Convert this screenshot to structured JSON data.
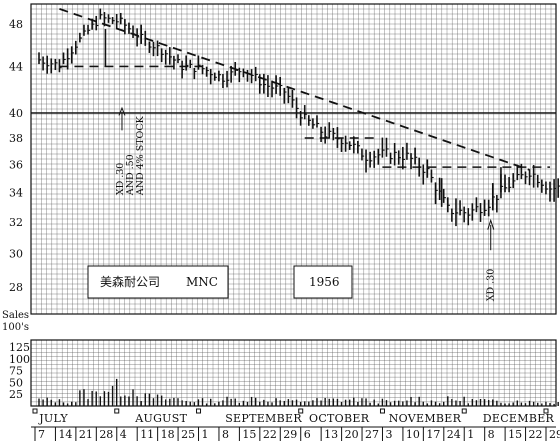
{
  "chart_data": [
    {
      "type": "bar",
      "subtype": "ohlc-daily-price-bars",
      "grid": true,
      "yscale": "log",
      "ylim": [
        26.5,
        50
      ],
      "y_ticks": [
        28,
        30,
        32,
        34,
        36,
        38,
        40,
        44,
        48
      ],
      "x_dates": [
        "7",
        "14",
        "21",
        "28",
        "4",
        "11",
        "18",
        "25",
        "1",
        "8",
        "15",
        "22",
        "29",
        "6",
        "13",
        "20",
        "27",
        "3",
        "10",
        "17",
        "24",
        "1",
        "8",
        "15",
        "22",
        "29"
      ],
      "months": [
        "JULY",
        "AUGUST",
        "SEPTEMBER",
        "OCTOBER",
        "NOVEMBER",
        "DECEMBER"
      ],
      "labels": {
        "company_cn": "美森耐公司",
        "company_en": "MNC",
        "year": "1956"
      },
      "annotations": [
        {
          "text": "XD .30",
          "week_index": 4.5
        },
        {
          "text": "AND .50",
          "week_index": 4.5
        },
        {
          "text": "AND 4% STOCK",
          "week_index": 4.5
        },
        {
          "text": "XD .30",
          "week_index": 22.1
        }
      ],
      "trendline": {
        "style": "dashed",
        "points": [
          [
            1.0,
            49.5
          ],
          [
            24.0,
            35.6
          ]
        ]
      },
      "horizontal_lines": [
        {
          "style": "dashed",
          "y": 44.0,
          "from": 1.0,
          "to": 8.0
        },
        {
          "style": "dashed",
          "y": 38.0,
          "from": 13.0,
          "to": 16.5
        },
        {
          "style": "dashed",
          "y": 35.8,
          "from": 16.8,
          "to": 25.0
        }
      ],
      "weekly_closes": [
        44.6,
        44.1,
        46.5,
        48.6,
        48.2,
        46.6,
        45.5,
        44.0,
        43.8,
        43.0,
        43.8,
        42.4,
        41.8,
        39.5,
        38.3,
        37.8,
        36.6,
        36.8,
        36.6,
        35.5,
        32.8,
        32.6,
        33.3,
        34.5,
        35.5,
        34.3
      ],
      "breaks": [
        {
          "after_week": 3.25,
          "from": 44.0,
          "to": 47.5
        },
        {
          "after_week": 19.7,
          "from": 35.0,
          "to": 33.0
        },
        {
          "after_week": 22.6,
          "from": 34.0,
          "to": 35.8
        }
      ]
    },
    {
      "type": "bar",
      "subtype": "volume",
      "ylabel": "Sales 100's",
      "y_ticks": [
        25,
        50,
        75,
        100,
        125
      ],
      "ylim": [
        0,
        140
      ],
      "weekly_volumes": [
        15,
        12,
        30,
        45,
        42,
        22,
        18,
        14,
        13,
        16,
        18,
        15,
        12,
        14,
        15,
        16,
        13,
        10,
        18,
        12,
        16,
        14,
        11,
        13,
        10,
        9
      ]
    }
  ]
}
